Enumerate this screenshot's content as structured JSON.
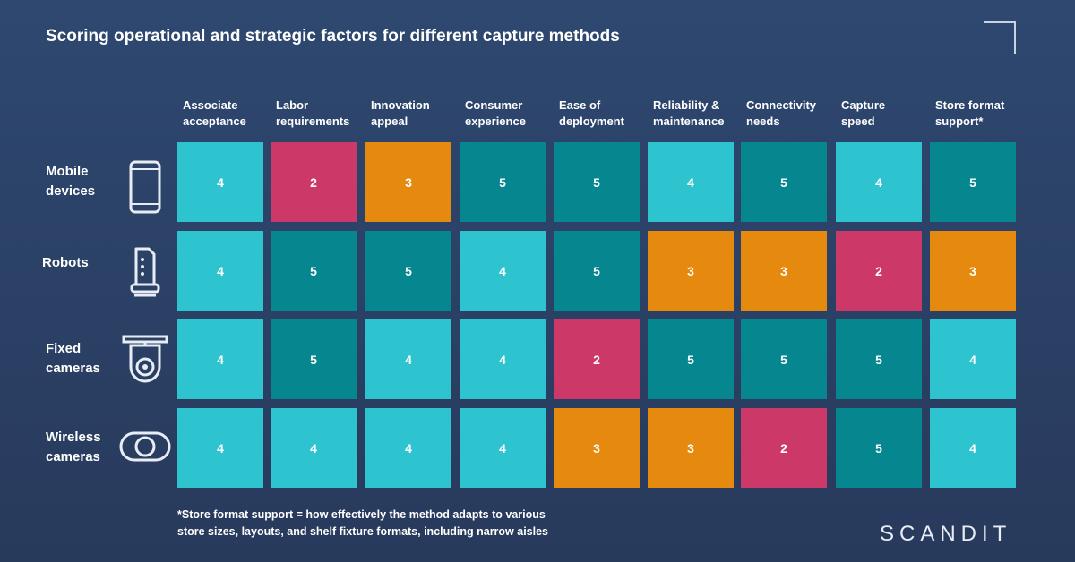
{
  "title": "Scoring operational and strategic factors for different capture methods",
  "colors": {
    "4": "#2ec4cf",
    "5": "#06878f",
    "3": "#e5890f",
    "2": "#cc3968"
  },
  "chart_data": {
    "type": "heatmap",
    "title": "Scoring operational and strategic factors for different capture methods",
    "columns": [
      "Associate\nacceptance",
      "Labor\nrequirements",
      "Innovation\nappeal",
      "Consumer\nexperience",
      "Ease of\ndeployment",
      "Reliability &\nmaintenance",
      "Connectivity\nneeds",
      "Capture\nspeed",
      "Store format\nsupport*"
    ],
    "rows": [
      {
        "label": "Mobile\ndevices",
        "icon": "mobile-phone-icon",
        "values": [
          4,
          2,
          3,
          5,
          5,
          4,
          5,
          4,
          5
        ]
      },
      {
        "label": "Robots",
        "icon": "robot-icon",
        "values": [
          4,
          5,
          5,
          4,
          5,
          3,
          3,
          2,
          3
        ]
      },
      {
        "label": "Fixed\ncameras",
        "icon": "fixed-camera-icon",
        "values": [
          4,
          5,
          4,
          4,
          2,
          5,
          5,
          5,
          4
        ]
      },
      {
        "label": "Wireless\ncameras",
        "icon": "wireless-camera-icon",
        "values": [
          4,
          4,
          4,
          4,
          3,
          3,
          2,
          5,
          4
        ]
      }
    ]
  },
  "footnote": "*Store format support = how effectively the method adapts to various\nstore sizes, layouts, and shelf fixture formats, including narrow aisles",
  "logo": "SCANDIT"
}
